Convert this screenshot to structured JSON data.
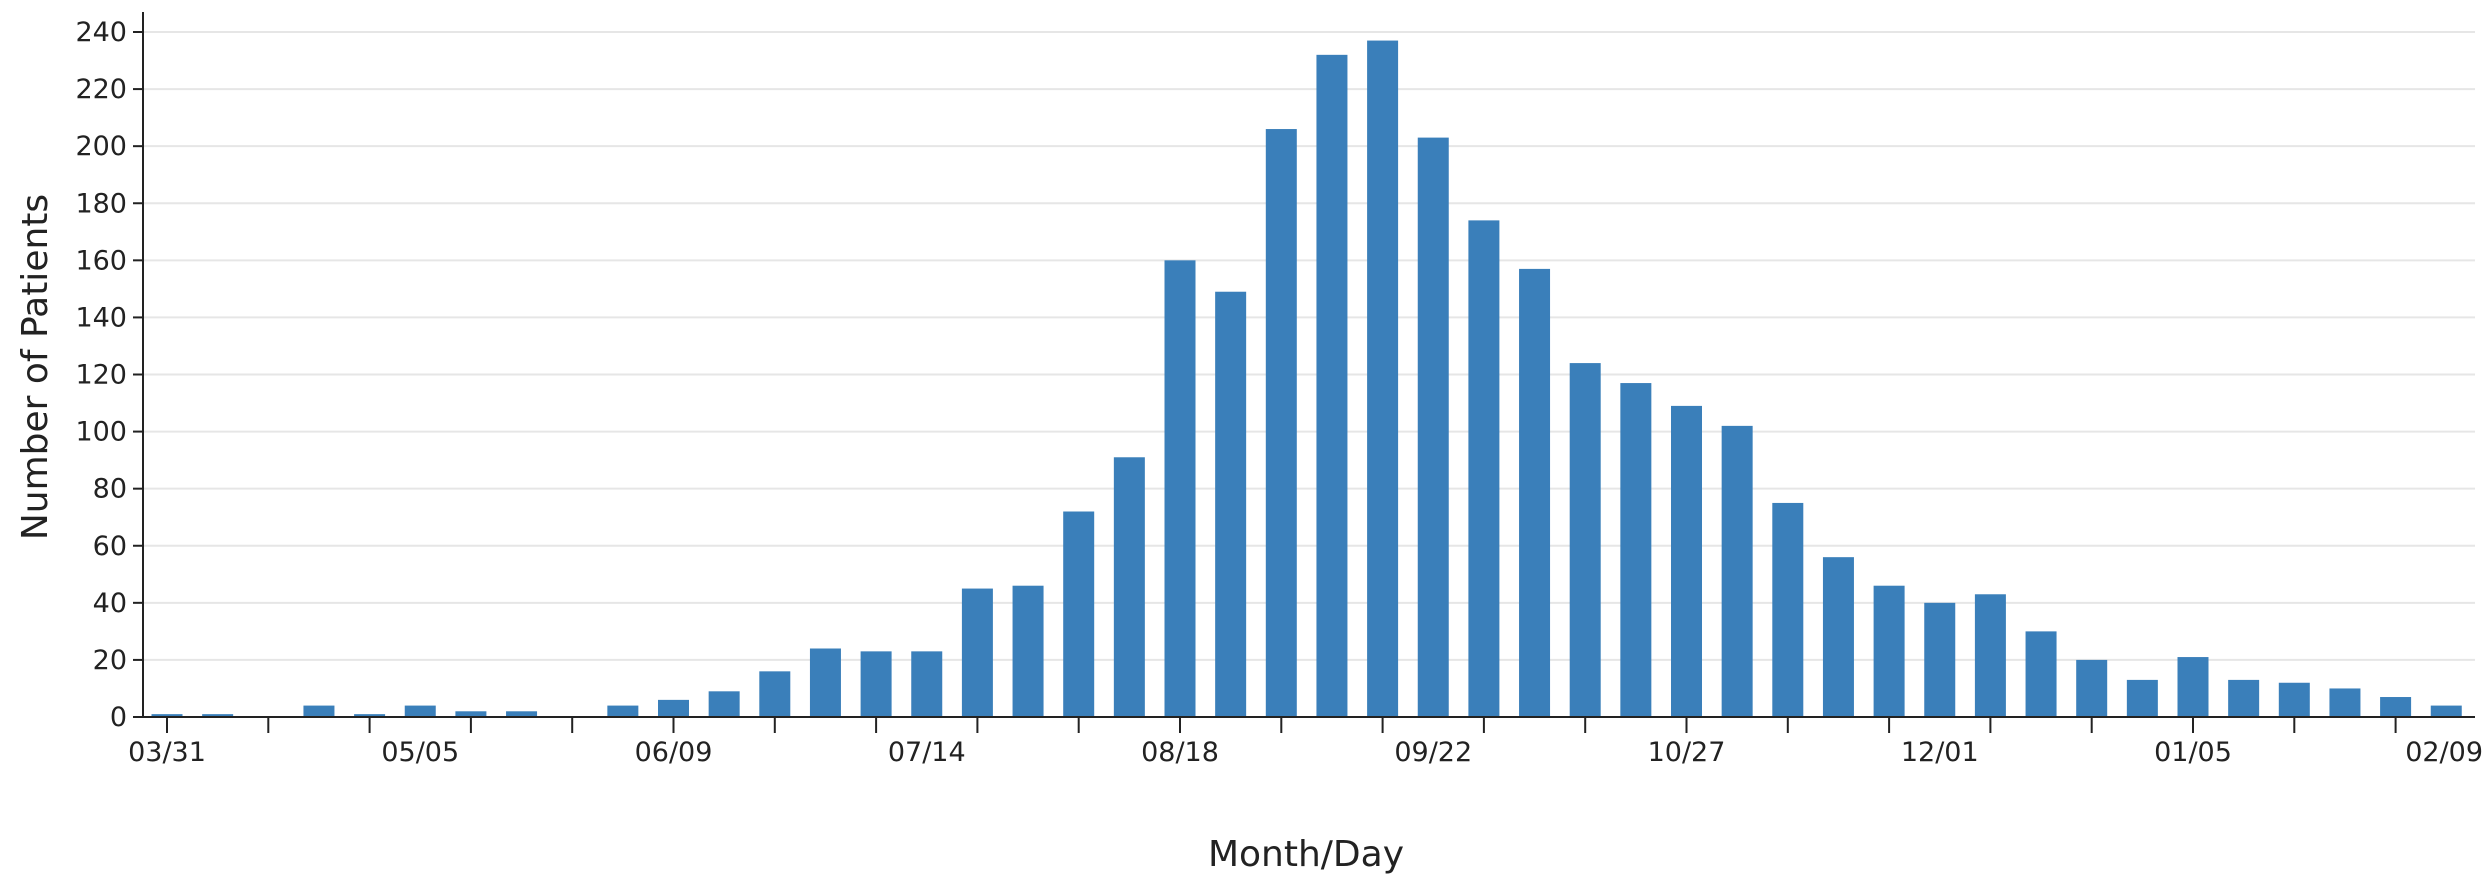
{
  "chart_data": {
    "type": "bar",
    "xlabel": "Month/Day",
    "ylabel": "Number of Patients",
    "ylim": [
      0,
      240
    ],
    "yticks": [
      0,
      20,
      40,
      60,
      80,
      100,
      120,
      140,
      160,
      180,
      200,
      220,
      240
    ],
    "grid": true,
    "x_tick_labels": [
      {
        "label": "03/31",
        "index": 0
      },
      {
        "label": "05/05",
        "index": 5
      },
      {
        "label": "06/09",
        "index": 10
      },
      {
        "label": "07/14",
        "index": 15
      },
      {
        "label": "08/18",
        "index": 20
      },
      {
        "label": "09/22",
        "index": 25
      },
      {
        "label": "10/27",
        "index": 30
      },
      {
        "label": "12/01",
        "index": 35
      },
      {
        "label": "01/05",
        "index": 40
      },
      {
        "label": "02/09",
        "index": 45
      }
    ],
    "values": [
      1,
      1,
      0,
      4,
      1,
      4,
      2,
      2,
      0,
      4,
      6,
      9,
      16,
      24,
      23,
      23,
      45,
      46,
      72,
      91,
      160,
      149,
      206,
      232,
      237,
      203,
      174,
      157,
      124,
      117,
      109,
      102,
      75,
      56,
      46,
      40,
      43,
      30,
      20,
      13,
      21,
      13,
      12,
      10,
      7,
      4
    ],
    "colors": {
      "bar": "#3a7fba"
    }
  }
}
